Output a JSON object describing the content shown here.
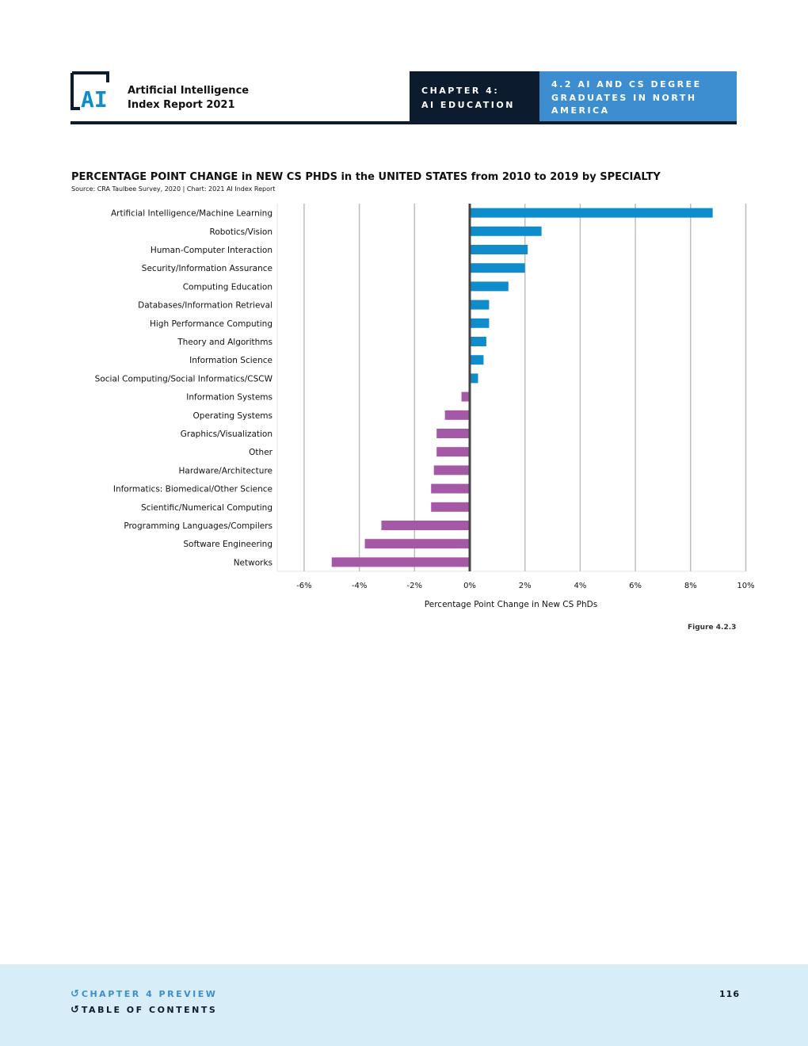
{
  "header": {
    "logo_text": "AI",
    "report_title_line1": "Artificial Intelligence",
    "report_title_line2": "Index Report 2021",
    "chapter_line1": "CHAPTER 4:",
    "chapter_line2": "AI EDUCATION",
    "section_line1": "4.2 AI AND CS DEGREE",
    "section_line2": "GRADUATES IN NORTH",
    "section_line3": "AMERICA"
  },
  "figure_label": "Figure 4.2.3",
  "footer": {
    "chapter_preview": "CHAPTER 4 PREVIEW",
    "table_of_contents": "TABLE OF CONTENTS",
    "page_number": "116"
  },
  "colors": {
    "positive": "#0e8ccb",
    "negative": "#a558a6",
    "navy": "#0c1b2e",
    "accent_blue": "#3d8ed0",
    "footer_bg": "#d7eef8"
  },
  "chart_data": {
    "type": "bar",
    "orientation": "horizontal",
    "title": "PERCENTAGE POINT CHANGE in NEW CS PHDS in the UNITED STATES from 2010 to 2019 by SPECIALTY",
    "source": "Source: CRA Taulbee Survey, 2020 | Chart: 2021 AI Index Report",
    "xlabel": "Percentage Point Change in New CS PhDs",
    "ylabel": "",
    "xlim": [
      -7,
      10
    ],
    "xticks": [
      -6,
      -4,
      -2,
      0,
      2,
      4,
      6,
      8,
      10
    ],
    "xtick_labels": [
      "-6%",
      "-4%",
      "-2%",
      "0%",
      "2%",
      "4%",
      "6%",
      "8%",
      "10%"
    ],
    "grid": true,
    "categories": [
      "Artificial Intelligence/Machine Learning",
      "Robotics/Vision",
      "Human-Computer Interaction",
      "Security/Information Assurance",
      "Computing Education",
      "Databases/Information Retrieval",
      "High Performance Computing",
      "Theory and Algorithms",
      "Information Science",
      "Social Computing/Social Informatics/CSCW",
      "Information Systems",
      "Operating Systems",
      "Graphics/Visualization",
      "Other",
      "Hardware/Architecture",
      "Informatics: Biomedical/Other Science",
      "Scientific/Numerical Computing",
      "Programming Languages/Compilers",
      "Software Engineering",
      "Networks"
    ],
    "values": [
      8.8,
      2.6,
      2.1,
      2.0,
      1.4,
      0.7,
      0.7,
      0.6,
      0.5,
      0.3,
      -0.3,
      -0.9,
      -1.2,
      -1.2,
      -1.3,
      -1.4,
      -1.4,
      -3.2,
      -3.8,
      -5.0
    ]
  }
}
